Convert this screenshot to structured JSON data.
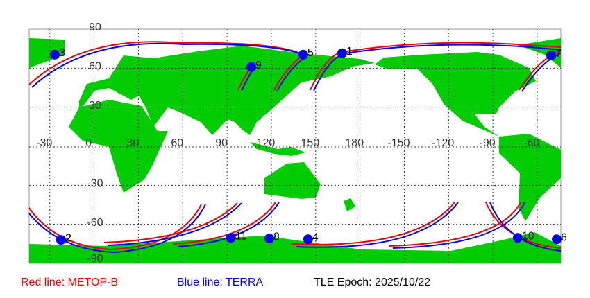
{
  "map": {
    "lonlim": [
      -44,
      316
    ],
    "latlim": [
      -90,
      90
    ],
    "lon_labels": [
      -30,
      0,
      30,
      60,
      90,
      120,
      150,
      180,
      -150,
      -120,
      -90,
      -60
    ],
    "lat_labels": [
      90,
      60,
      30,
      -30,
      -60,
      -90
    ],
    "satellites": [
      {
        "label": "1",
        "lon": 167.9,
        "lat": 71.5
      },
      {
        "label": "2",
        "lon": -22.4,
        "lat": -72
      },
      {
        "label": "3",
        "lon": -26.6,
        "lat": 70.4
      },
      {
        "label": "4",
        "lon": 144.9,
        "lat": -71.5
      },
      {
        "label": "5",
        "lon": 141.6,
        "lat": 70.4
      },
      {
        "label": "6",
        "lon": -46.8,
        "lat": -71.5
      },
      {
        "label": "7",
        "lon": -50.6,
        "lat": 69.9
      },
      {
        "label": "8",
        "lon": 118.6,
        "lat": -70.9
      },
      {
        "label": "9",
        "lon": 106.4,
        "lat": 60.9
      },
      {
        "label": "10",
        "lon": -73.2,
        "lat": -70.4
      },
      {
        "label": "11",
        "lon": 92.7,
        "lat": -70.4
      }
    ]
  },
  "legend": {
    "red": "Red line: METOP-B",
    "blue": "Blue line: TERRA",
    "epoch": "TLE Epoch: 2025/10/22"
  }
}
